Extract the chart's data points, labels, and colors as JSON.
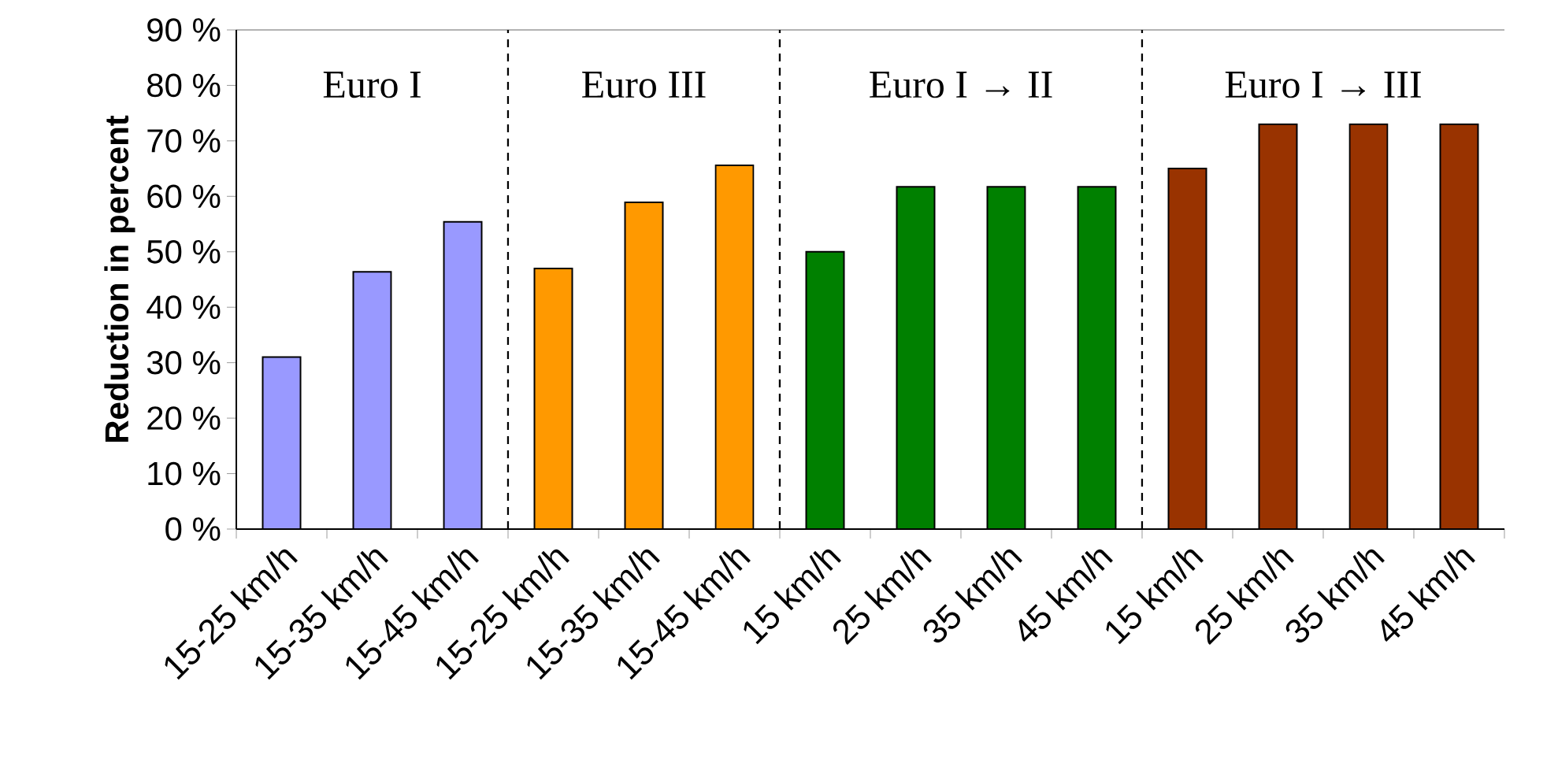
{
  "chart_data": {
    "type": "bar",
    "ylabel": "Reduction in percent",
    "categories": [
      "15-25 km/h",
      "15-35 km/h",
      "15-45 km/h",
      "15-25 km/h",
      "15-35 km/h",
      "15-45 km/h",
      "15 km/h",
      "25 km/h",
      "35 km/h",
      "45 km/h",
      "15 km/h",
      "25 km/h",
      "35 km/h",
      "45 km/h"
    ],
    "values": [
      31,
      46.4,
      55.4,
      47,
      58.9,
      65.6,
      50,
      61.7,
      61.7,
      61.7,
      65,
      73,
      73,
      73
    ],
    "colors": [
      "#9999ff",
      "#9999ff",
      "#9999ff",
      "#ff9900",
      "#ff9900",
      "#ff9900",
      "#008000",
      "#008000",
      "#008000",
      "#008000",
      "#993300",
      "#993300",
      "#993300",
      "#993300"
    ],
    "ylim": [
      0,
      90
    ],
    "yticks": [
      {
        "value": 0,
        "label": "0 %"
      },
      {
        "value": 10,
        "label": "10 %"
      },
      {
        "value": 20,
        "label": "20 %"
      },
      {
        "value": 30,
        "label": "30 %"
      },
      {
        "value": 40,
        "label": "40 %"
      },
      {
        "value": 50,
        "label": "50 %"
      },
      {
        "value": 60,
        "label": "60 %"
      },
      {
        "value": 70,
        "label": "70 %"
      },
      {
        "value": 80,
        "label": "80 %"
      },
      {
        "value": 90,
        "label": "90 %"
      }
    ],
    "annotations": [
      "Euro I",
      "Euro III",
      "Euro I → II",
      "Euro I → III"
    ],
    "grid": false
  }
}
